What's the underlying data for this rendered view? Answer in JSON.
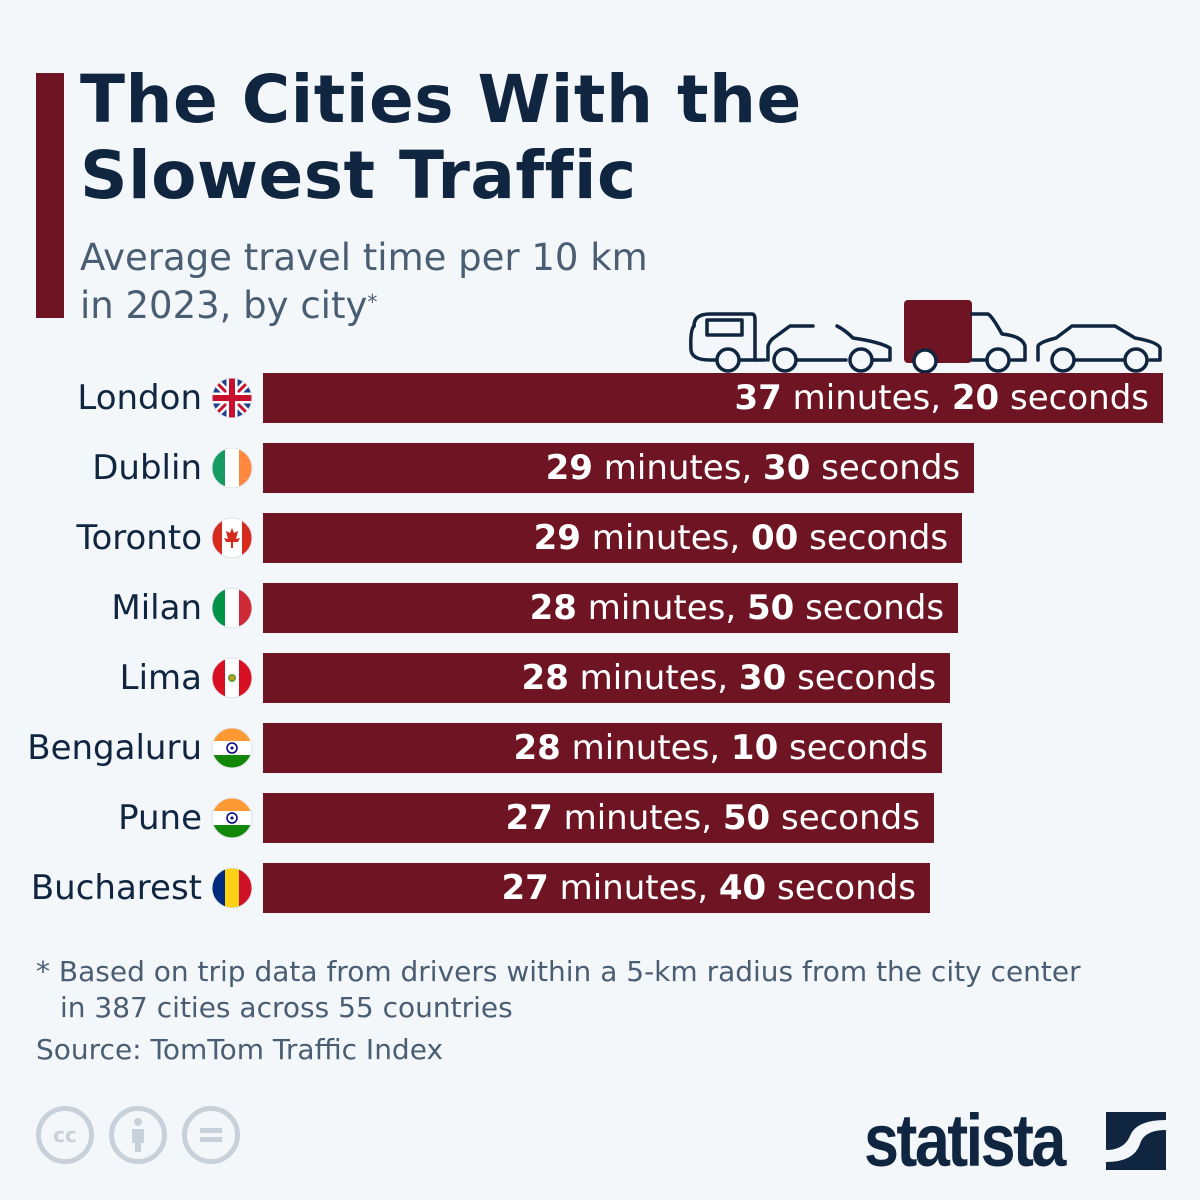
{
  "header": {
    "title_line1": "The Cities With the",
    "title_line2": "Slowest Traffic",
    "subtitle_line1": "Average travel time per 10 km",
    "subtitle_line2": "in 2023, by city",
    "subtitle_mark": "*"
  },
  "colors": {
    "bar": "#6e1423",
    "text": "#0f2540",
    "muted": "#4a5e73",
    "background": "#f4f7fa"
  },
  "chart_data": {
    "type": "bar",
    "orientation": "horizontal",
    "unit": "minutes",
    "categories": [
      "London",
      "Dublin",
      "Toronto",
      "Milan",
      "Lima",
      "Bengaluru",
      "Pune",
      "Bucharest"
    ],
    "values": [
      37.333,
      29.5,
      29.0,
      28.833,
      28.5,
      28.167,
      27.833,
      27.667
    ],
    "minutes_word": "minutes,",
    "seconds_word": "seconds",
    "labels": [
      {
        "min": "37",
        "sec": "20",
        "flag": "uk"
      },
      {
        "min": "29",
        "sec": "30",
        "flag": "ireland"
      },
      {
        "min": "29",
        "sec": "00",
        "flag": "canada"
      },
      {
        "min": "28",
        "sec": "50",
        "flag": "italy"
      },
      {
        "min": "28",
        "sec": "30",
        "flag": "peru"
      },
      {
        "min": "28",
        "sec": "10",
        "flag": "india"
      },
      {
        "min": "27",
        "sec": "50",
        "flag": "india"
      },
      {
        "min": "27",
        "sec": "40",
        "flag": "romania"
      }
    ],
    "grid": false,
    "legend": "none"
  },
  "footer": {
    "note_line1": "* Based on trip data from drivers within a 5-km radius from the city center",
    "note_line2": "in 387 cities across 55 countries",
    "source": "Source: TomTom Traffic Index",
    "cc_icons": [
      "cc",
      "i",
      "="
    ],
    "logo": "statista"
  }
}
